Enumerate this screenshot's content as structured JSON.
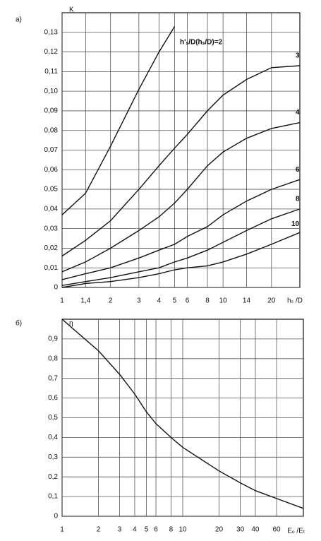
{
  "chart_data": [
    {
      "type": "line",
      "panel_label": "а)",
      "ylabel": "K",
      "xlabel": "hₛ /D",
      "xscale": "log",
      "grid": true,
      "xlim": [
        1,
        30
      ],
      "ylim": [
        0,
        0.14
      ],
      "xticks": [
        1,
        {
          "value": 1.4,
          "label": "1,4"
        },
        2,
        3,
        4,
        5,
        6,
        8,
        10,
        14,
        20
      ],
      "yticks": [
        0,
        {
          "value": 0.01,
          "label": "0,01"
        },
        {
          "value": 0.02,
          "label": "0,02"
        },
        {
          "value": 0.03,
          "label": "0,03"
        },
        {
          "value": 0.04,
          "label": "0,04"
        },
        {
          "value": 0.05,
          "label": "0,05"
        },
        {
          "value": 0.06,
          "label": "0,06"
        },
        {
          "value": 0.07,
          "label": "0,07"
        },
        {
          "value": 0.08,
          "label": "0,08"
        },
        {
          "value": 0.09,
          "label": "0,09"
        },
        {
          "value": 0.1,
          "label": "0,10"
        },
        {
          "value": 0.11,
          "label": "0,11"
        },
        {
          "value": 0.12,
          "label": "0,12"
        },
        {
          "value": 0.13,
          "label": "0,13"
        }
      ],
      "x": [
        1,
        1.4,
        2,
        3,
        4,
        5,
        6,
        8,
        10,
        14,
        20,
        30
      ],
      "series": [
        {
          "name": "h'ₛ/D(hₛ/D)=2",
          "color": "#111111",
          "values": [
            0.037,
            0.048,
            0.072,
            0.101,
            0.12,
            0.133,
            null,
            null,
            null,
            null,
            null,
            null
          ]
        },
        {
          "name": "3",
          "color": "#111111",
          "values": [
            0.016,
            0.024,
            0.034,
            0.05,
            0.062,
            0.071,
            0.078,
            0.09,
            0.098,
            0.106,
            0.112,
            0.113
          ]
        },
        {
          "name": "4",
          "color": "#111111",
          "values": [
            0.008,
            0.013,
            0.02,
            0.029,
            0.036,
            0.043,
            0.05,
            0.062,
            0.069,
            0.076,
            0.081,
            0.084
          ]
        },
        {
          "name": "6",
          "color": "#111111",
          "values": [
            0.004,
            0.007,
            0.01,
            0.015,
            0.019,
            0.022,
            0.026,
            0.031,
            0.037,
            0.044,
            0.05,
            0.055
          ]
        },
        {
          "name": "8",
          "color": "#111111",
          "values": [
            0.001,
            0.003,
            0.005,
            0.008,
            0.01,
            0.013,
            0.015,
            0.019,
            0.023,
            0.029,
            0.035,
            0.04
          ]
        },
        {
          "name": "10",
          "color": "#111111",
          "values": [
            0,
            0.002,
            0.003,
            0.005,
            0.007,
            0.009,
            0.01,
            0.011,
            0.013,
            0.017,
            0.022,
            0.028
          ]
        }
      ]
    },
    {
      "type": "line",
      "panel_label": "б)",
      "ylabel": "η",
      "xlabel": "Eₒ /Eₜ",
      "xscale": "log",
      "grid": true,
      "xlim": [
        1,
        100
      ],
      "ylim": [
        0,
        1
      ],
      "xticks": [
        1,
        2,
        3,
        4,
        5,
        6,
        8,
        10,
        20,
        30,
        40,
        60
      ],
      "yticks": [
        0,
        {
          "value": 0.1,
          "label": "0,1"
        },
        {
          "value": 0.2,
          "label": "0,2"
        },
        {
          "value": 0.3,
          "label": "0,3"
        },
        {
          "value": 0.4,
          "label": "0,4"
        },
        {
          "value": 0.5,
          "label": "0,5"
        },
        {
          "value": 0.6,
          "label": "0,6"
        },
        {
          "value": 0.7,
          "label": "0,7"
        },
        {
          "value": 0.8,
          "label": "0,8"
        },
        {
          "value": 0.9,
          "label": "0,9"
        }
      ],
      "x": [
        1,
        2,
        3,
        4,
        5,
        6,
        8,
        10,
        20,
        30,
        40,
        60,
        100
      ],
      "series": [
        {
          "color": "#111111",
          "values": [
            1.0,
            0.84,
            0.72,
            0.62,
            0.53,
            0.47,
            0.4,
            0.35,
            0.23,
            0.17,
            0.13,
            0.09,
            0.04
          ]
        }
      ]
    }
  ]
}
